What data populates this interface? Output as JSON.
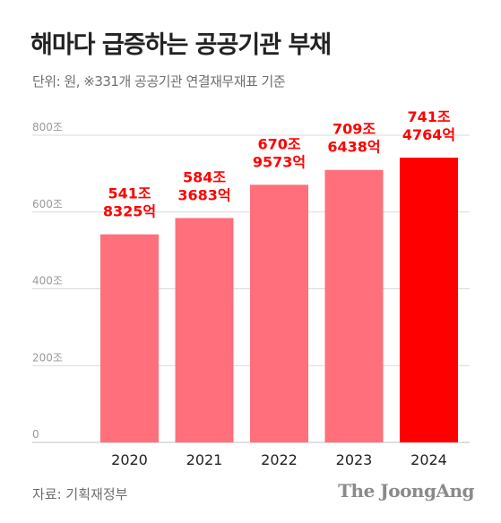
{
  "title": "해마다 급증하는 공공기관 부채",
  "subtitle": "단위: 원, ※331개 공공기관 연결재무재표 기준",
  "source": "자료: 기획재정부",
  "logo": "The JoongAng",
  "colors": {
    "bar": "#ff6f7c",
    "bar_highlight": "#ff0000",
    "value_label": "#ff0000",
    "grid": "#d9d9d9",
    "tick_label": "#9a9a9a",
    "category_label": "#222222"
  },
  "chart_data": {
    "type": "bar",
    "title": "해마다 급증하는 공공기관 부채",
    "xlabel": "",
    "ylabel": "",
    "categories": [
      "2020",
      "2021",
      "2022",
      "2023",
      "2024"
    ],
    "values": [
      541.8325,
      584.3683,
      670.9573,
      709.6438,
      741.4764
    ],
    "value_labels": [
      [
        "541조",
        "8325억"
      ],
      [
        "584조",
        "3683억"
      ],
      [
        "670조",
        "9573억"
      ],
      [
        "709조",
        "6438억"
      ],
      [
        "741조",
        "4764억"
      ]
    ],
    "highlight_index": 4,
    "ylim": [
      0,
      800
    ],
    "yticks": [
      0,
      200,
      400,
      600,
      800
    ],
    "ytick_labels": [
      "0",
      "200조",
      "400조",
      "600조",
      "800조"
    ],
    "grid": true
  }
}
